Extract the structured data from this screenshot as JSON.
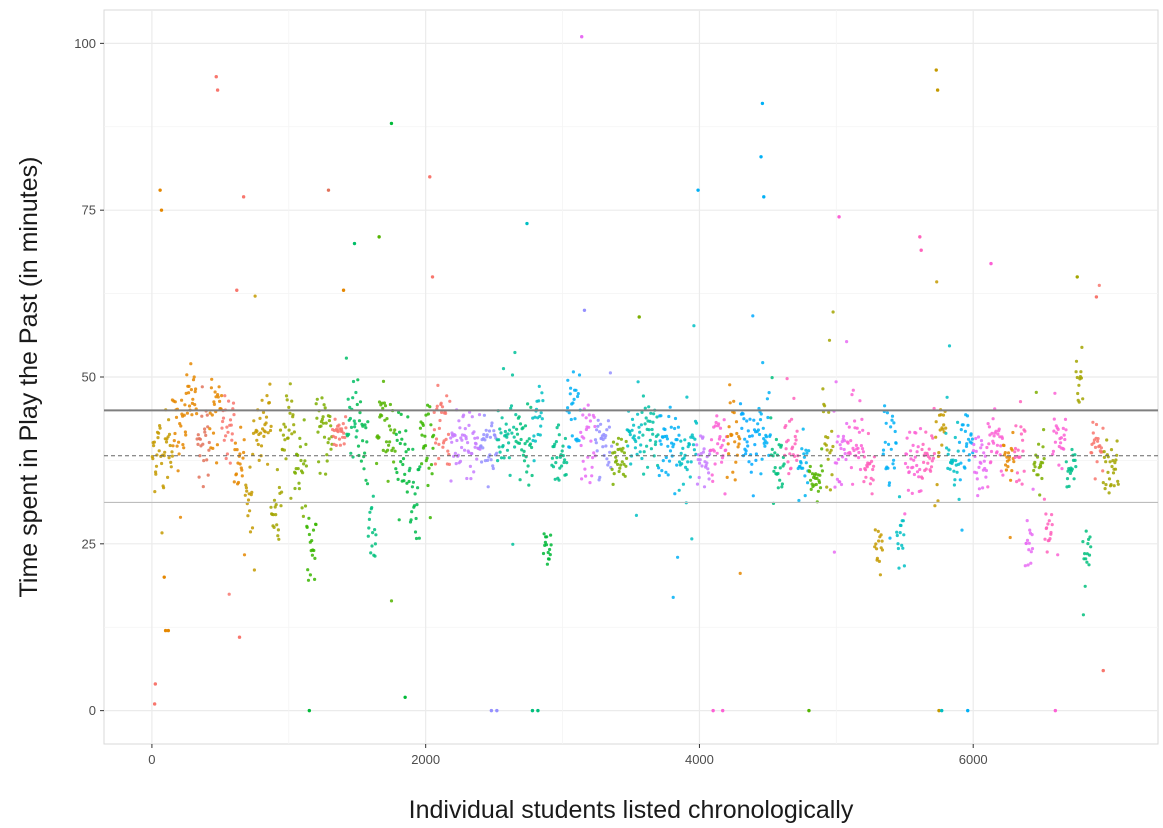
{
  "chart_data": {
    "type": "scatter",
    "title": "",
    "xlabel": "Individual students listed chronologically",
    "ylabel": "Time spent in Play the Past (in minutes)",
    "xlim": [
      -350,
      7350
    ],
    "ylim": [
      -5,
      105
    ],
    "x_ticks": [
      0,
      2000,
      4000,
      6000
    ],
    "x_tick_labels": [
      "0",
      "2000",
      "4000",
      "6000"
    ],
    "y_ticks": [
      0,
      25,
      50,
      75,
      100
    ],
    "y_tick_labels": [
      "0",
      "25",
      "50",
      "75",
      "100"
    ],
    "grid": true,
    "legend": "none",
    "reference_lines": [
      {
        "y": 45,
        "style": "solid",
        "color": "#7f7f7f"
      },
      {
        "y": 38.2,
        "style": "dashed",
        "color": "#666666"
      },
      {
        "y": 31.2,
        "style": "solid",
        "color": "#bdbdbd"
      }
    ],
    "groups": [
      {
        "start": 0,
        "end": 150,
        "center": 39,
        "spread": 3,
        "color": "#c49a00"
      },
      {
        "start": 150,
        "end": 250,
        "center": 42,
        "spread": 3,
        "color": "#e58700"
      },
      {
        "start": 250,
        "end": 330,
        "center": 47,
        "spread": 2,
        "color": "#e58700"
      },
      {
        "start": 330,
        "end": 420,
        "center": 41,
        "spread": 3,
        "color": "#e2725b"
      },
      {
        "start": 420,
        "end": 510,
        "center": 44,
        "spread": 3,
        "color": "#e58700"
      },
      {
        "start": 510,
        "end": 600,
        "center": 42,
        "spread": 4,
        "color": "#f8766d"
      },
      {
        "start": 600,
        "end": 680,
        "center": 38,
        "spread": 3,
        "color": "#e58700"
      },
      {
        "start": 680,
        "end": 740,
        "center": 32,
        "spread": 2,
        "color": "#c49a00"
      },
      {
        "start": 740,
        "end": 870,
        "center": 42,
        "spread": 2.5,
        "color": "#c49a00"
      },
      {
        "start": 870,
        "end": 950,
        "center": 30,
        "spread": 3,
        "color": "#a3a500"
      },
      {
        "start": 950,
        "end": 1040,
        "center": 42,
        "spread": 3,
        "color": "#99a800"
      },
      {
        "start": 1040,
        "end": 1130,
        "center": 37,
        "spread": 3,
        "color": "#7cae00"
      },
      {
        "start": 1130,
        "end": 1200,
        "center": 24,
        "spread": 2.5,
        "color": "#39b600"
      },
      {
        "start": 1200,
        "end": 1320,
        "center": 41,
        "spread": 3,
        "color": "#7cae00"
      },
      {
        "start": 1320,
        "end": 1420,
        "center": 42,
        "spread": 2,
        "color": "#f8766d"
      },
      {
        "start": 1420,
        "end": 1500,
        "center": 43,
        "spread": 3,
        "color": "#00be67"
      },
      {
        "start": 1500,
        "end": 1580,
        "center": 40,
        "spread": 4,
        "color": "#00bb4e"
      },
      {
        "start": 1580,
        "end": 1640,
        "center": 26,
        "spread": 3,
        "color": "#00bf7d"
      },
      {
        "start": 1640,
        "end": 1780,
        "center": 42,
        "spread": 3,
        "color": "#53b400"
      },
      {
        "start": 1780,
        "end": 1880,
        "center": 40,
        "spread": 4,
        "color": "#00ba38"
      },
      {
        "start": 1880,
        "end": 1960,
        "center": 32,
        "spread": 3,
        "color": "#00bb4e"
      },
      {
        "start": 1960,
        "end": 2060,
        "center": 41,
        "spread": 3,
        "color": "#39b600"
      },
      {
        "start": 2060,
        "end": 2180,
        "center": 42,
        "spread": 3,
        "color": "#f8766d"
      },
      {
        "start": 2180,
        "end": 2400,
        "center": 40,
        "spread": 2.5,
        "color": "#c77cff"
      },
      {
        "start": 2400,
        "end": 2520,
        "center": 40,
        "spread": 2.5,
        "color": "#9590ff"
      },
      {
        "start": 2520,
        "end": 2660,
        "center": 41,
        "spread": 2.5,
        "color": "#00c19a"
      },
      {
        "start": 2660,
        "end": 2780,
        "center": 40,
        "spread": 2.5,
        "color": "#00bf7d"
      },
      {
        "start": 2780,
        "end": 2860,
        "center": 44,
        "spread": 2.5,
        "color": "#00bfc4"
      },
      {
        "start": 2860,
        "end": 2920,
        "center": 24,
        "spread": 2,
        "color": "#00b938"
      },
      {
        "start": 2920,
        "end": 3030,
        "center": 37,
        "spread": 2.5,
        "color": "#00c08b"
      },
      {
        "start": 3030,
        "end": 3130,
        "center": 45,
        "spread": 3,
        "color": "#00b0f6"
      },
      {
        "start": 3130,
        "end": 3240,
        "center": 40,
        "spread": 3,
        "color": "#e76bf3"
      },
      {
        "start": 3240,
        "end": 3360,
        "center": 40,
        "spread": 2.5,
        "color": "#9590ff"
      },
      {
        "start": 3360,
        "end": 3470,
        "center": 37,
        "spread": 2,
        "color": "#7cae00"
      },
      {
        "start": 3470,
        "end": 3580,
        "center": 41,
        "spread": 2.5,
        "color": "#00bfc4"
      },
      {
        "start": 3580,
        "end": 3700,
        "center": 42,
        "spread": 2.5,
        "color": "#00c1a3"
      },
      {
        "start": 3700,
        "end": 3850,
        "center": 40,
        "spread": 2.5,
        "color": "#00b0f6"
      },
      {
        "start": 3850,
        "end": 3980,
        "center": 39,
        "spread": 2.5,
        "color": "#00bfc4"
      },
      {
        "start": 3980,
        "end": 4080,
        "center": 38,
        "spread": 2,
        "color": "#c77cff"
      },
      {
        "start": 4080,
        "end": 4200,
        "center": 40,
        "spread": 2,
        "color": "#fc61d5"
      },
      {
        "start": 4200,
        "end": 4300,
        "center": 41,
        "spread": 3,
        "color": "#e58700"
      },
      {
        "start": 4300,
        "end": 4420,
        "center": 41,
        "spread": 3,
        "color": "#00a9ff"
      },
      {
        "start": 4420,
        "end": 4520,
        "center": 42,
        "spread": 3,
        "color": "#00b0f6"
      },
      {
        "start": 4520,
        "end": 4620,
        "center": 37,
        "spread": 2.5,
        "color": "#00bf7d"
      },
      {
        "start": 4620,
        "end": 4720,
        "center": 40,
        "spread": 2.5,
        "color": "#ff62bc"
      },
      {
        "start": 4720,
        "end": 4800,
        "center": 37,
        "spread": 2,
        "color": "#00b4f0"
      },
      {
        "start": 4800,
        "end": 4900,
        "center": 35,
        "spread": 1.5,
        "color": "#53b400"
      },
      {
        "start": 4900,
        "end": 4980,
        "center": 41,
        "spread": 3,
        "color": "#a3a500"
      },
      {
        "start": 4980,
        "end": 5080,
        "center": 38,
        "spread": 3,
        "color": "#e76bf3"
      },
      {
        "start": 5080,
        "end": 5200,
        "center": 40,
        "spread": 2.5,
        "color": "#fc61d5"
      },
      {
        "start": 5200,
        "end": 5280,
        "center": 37,
        "spread": 2,
        "color": "#ff62bc"
      },
      {
        "start": 5280,
        "end": 5340,
        "center": 24,
        "spread": 1.5,
        "color": "#c49a00"
      },
      {
        "start": 5340,
        "end": 5440,
        "center": 40,
        "spread": 3,
        "color": "#00b0f6"
      },
      {
        "start": 5440,
        "end": 5500,
        "center": 27,
        "spread": 2,
        "color": "#00bfc4"
      },
      {
        "start": 5500,
        "end": 5620,
        "center": 37,
        "spread": 2.5,
        "color": "#fc61d5"
      },
      {
        "start": 5620,
        "end": 5720,
        "center": 38,
        "spread": 2.5,
        "color": "#ff62bc"
      },
      {
        "start": 5720,
        "end": 5800,
        "center": 40,
        "spread": 4,
        "color": "#c49a00"
      },
      {
        "start": 5800,
        "end": 5900,
        "center": 37,
        "spread": 3,
        "color": "#00bfc4"
      },
      {
        "start": 5900,
        "end": 6000,
        "center": 39,
        "spread": 3,
        "color": "#00b0f6"
      },
      {
        "start": 6000,
        "end": 6100,
        "center": 37,
        "spread": 2,
        "color": "#e76bf3"
      },
      {
        "start": 6100,
        "end": 6220,
        "center": 40,
        "spread": 2.5,
        "color": "#fc61d5"
      },
      {
        "start": 6220,
        "end": 6300,
        "center": 38,
        "spread": 2.5,
        "color": "#e58700"
      },
      {
        "start": 6300,
        "end": 6380,
        "center": 39,
        "spread": 2.5,
        "color": "#ff62bc"
      },
      {
        "start": 6380,
        "end": 6440,
        "center": 25,
        "spread": 2,
        "color": "#e76bf3"
      },
      {
        "start": 6440,
        "end": 6520,
        "center": 36,
        "spread": 2,
        "color": "#7cae00"
      },
      {
        "start": 6520,
        "end": 6580,
        "center": 29,
        "spread": 2,
        "color": "#ff62bc"
      },
      {
        "start": 6580,
        "end": 6680,
        "center": 41,
        "spread": 2.5,
        "color": "#fc61d5"
      },
      {
        "start": 6680,
        "end": 6750,
        "center": 37,
        "spread": 2,
        "color": "#00c08b"
      },
      {
        "start": 6750,
        "end": 6800,
        "center": 49,
        "spread": 2,
        "color": "#a3a500"
      },
      {
        "start": 6800,
        "end": 6860,
        "center": 23,
        "spread": 2,
        "color": "#00bf7d"
      },
      {
        "start": 6860,
        "end": 6950,
        "center": 40,
        "spread": 2.5,
        "color": "#f8766d"
      },
      {
        "start": 6950,
        "end": 7060,
        "center": 37,
        "spread": 2,
        "color": "#a3a500"
      }
    ],
    "outliers": [
      {
        "x": 20,
        "y": 1,
        "color": "#f8766d"
      },
      {
        "x": 25,
        "y": 4,
        "color": "#f8766d"
      },
      {
        "x": 60,
        "y": 78,
        "color": "#e58700"
      },
      {
        "x": 70,
        "y": 75,
        "color": "#e58700"
      },
      {
        "x": 90,
        "y": 20,
        "color": "#e58700"
      },
      {
        "x": 100,
        "y": 12,
        "color": "#e58700"
      },
      {
        "x": 120,
        "y": 12,
        "color": "#e58700"
      },
      {
        "x": 470,
        "y": 95,
        "color": "#f8766d"
      },
      {
        "x": 480,
        "y": 93,
        "color": "#f8766d"
      },
      {
        "x": 620,
        "y": 63,
        "color": "#f8766d"
      },
      {
        "x": 640,
        "y": 11,
        "color": "#f8766d"
      },
      {
        "x": 670,
        "y": 77,
        "color": "#f8766d"
      },
      {
        "x": 1150,
        "y": 0,
        "color": "#00ba38"
      },
      {
        "x": 1290,
        "y": 78,
        "color": "#e2725b"
      },
      {
        "x": 1400,
        "y": 63,
        "color": "#e58700"
      },
      {
        "x": 1480,
        "y": 70,
        "color": "#00be67"
      },
      {
        "x": 1660,
        "y": 71,
        "color": "#53b400"
      },
      {
        "x": 1750,
        "y": 88,
        "color": "#00ba38"
      },
      {
        "x": 1850,
        "y": 2,
        "color": "#00ba38"
      },
      {
        "x": 2030,
        "y": 80,
        "color": "#f8766d"
      },
      {
        "x": 2050,
        "y": 65,
        "color": "#f8766d"
      },
      {
        "x": 2480,
        "y": 0,
        "color": "#9590ff"
      },
      {
        "x": 2520,
        "y": 0,
        "color": "#9590ff"
      },
      {
        "x": 2740,
        "y": 73,
        "color": "#00bfc4"
      },
      {
        "x": 2780,
        "y": 0,
        "color": "#00bf7d"
      },
      {
        "x": 2820,
        "y": 0,
        "color": "#00bf7d"
      },
      {
        "x": 3140,
        "y": 101,
        "color": "#e76bf3"
      },
      {
        "x": 3160,
        "y": 60,
        "color": "#9590ff"
      },
      {
        "x": 3560,
        "y": 59,
        "color": "#7cae00"
      },
      {
        "x": 3990,
        "y": 78,
        "color": "#00b0f6"
      },
      {
        "x": 4100,
        "y": 0,
        "color": "#fc61d5"
      },
      {
        "x": 4170,
        "y": 0,
        "color": "#fc61d5"
      },
      {
        "x": 4460,
        "y": 91,
        "color": "#00b0f6"
      },
      {
        "x": 4450,
        "y": 83,
        "color": "#00b0f6"
      },
      {
        "x": 4470,
        "y": 77,
        "color": "#00b0f6"
      },
      {
        "x": 4800,
        "y": 0,
        "color": "#53b400"
      },
      {
        "x": 5020,
        "y": 74,
        "color": "#fc61d5"
      },
      {
        "x": 5610,
        "y": 71,
        "color": "#ff62bc"
      },
      {
        "x": 5620,
        "y": 69,
        "color": "#ff62bc"
      },
      {
        "x": 5730,
        "y": 96,
        "color": "#c49a00"
      },
      {
        "x": 5740,
        "y": 93,
        "color": "#c49a00"
      },
      {
        "x": 5750,
        "y": 0,
        "color": "#c49a00"
      },
      {
        "x": 5770,
        "y": 0,
        "color": "#00bfc4"
      },
      {
        "x": 5960,
        "y": 0,
        "color": "#00b0f6"
      },
      {
        "x": 6130,
        "y": 67,
        "color": "#fc61d5"
      },
      {
        "x": 6600,
        "y": 0,
        "color": "#fc61d5"
      },
      {
        "x": 6760,
        "y": 65,
        "color": "#a3a500"
      },
      {
        "x": 6900,
        "y": 62,
        "color": "#f8766d"
      },
      {
        "x": 6950,
        "y": 6,
        "color": "#f8766d"
      }
    ]
  }
}
